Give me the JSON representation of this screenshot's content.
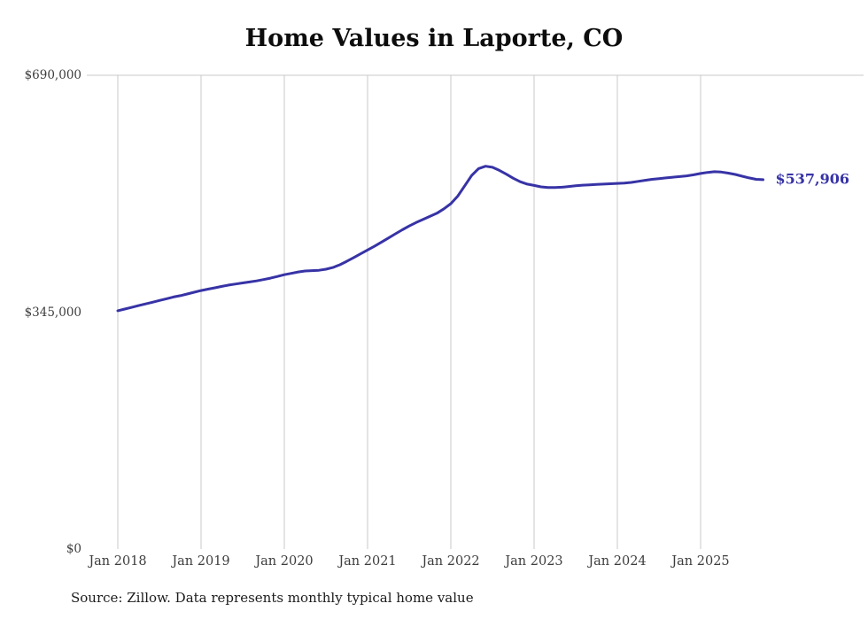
{
  "title": "Home Values in Laporte, CO",
  "source": "Source: Zillow. Data represents monthly typical home value",
  "end_label": "$537,906",
  "colors": {
    "line": "#3733a6",
    "grid": "#c9c9c9",
    "tick_text": "#3d3d3d"
  },
  "chart_data": {
    "type": "line",
    "title": "Home Values in Laporte, CO",
    "series_name": "Typical home value",
    "ylim": [
      0,
      690000
    ],
    "grid": "vertical-yearly",
    "legend": "none",
    "end_value": 537906,
    "y_ticks": [
      {
        "value": 690000,
        "label": "$690,000"
      },
      {
        "value": 345000,
        "label": "$345,000"
      },
      {
        "value": 0,
        "label": "$0"
      }
    ],
    "x_ticks": [
      "Jan 2018",
      "Jan 2019",
      "Jan 2020",
      "Jan 2021",
      "Jan 2022",
      "Jan 2023",
      "Jan 2024",
      "Jan 2025"
    ],
    "x": [
      "2018-01",
      "2018-02",
      "2018-03",
      "2018-04",
      "2018-05",
      "2018-06",
      "2018-07",
      "2018-08",
      "2018-09",
      "2018-10",
      "2018-11",
      "2018-12",
      "2019-01",
      "2019-02",
      "2019-03",
      "2019-04",
      "2019-05",
      "2019-06",
      "2019-07",
      "2019-08",
      "2019-09",
      "2019-10",
      "2019-11",
      "2019-12",
      "2020-01",
      "2020-02",
      "2020-03",
      "2020-04",
      "2020-05",
      "2020-06",
      "2020-07",
      "2020-08",
      "2020-09",
      "2020-10",
      "2020-11",
      "2020-12",
      "2021-01",
      "2021-02",
      "2021-03",
      "2021-04",
      "2021-05",
      "2021-06",
      "2021-07",
      "2021-08",
      "2021-09",
      "2021-10",
      "2021-11",
      "2021-12",
      "2022-01",
      "2022-02",
      "2022-03",
      "2022-04",
      "2022-05",
      "2022-06",
      "2022-07",
      "2022-08",
      "2022-09",
      "2022-10",
      "2022-11",
      "2022-12",
      "2023-01",
      "2023-02",
      "2023-03",
      "2023-04",
      "2023-05",
      "2023-06",
      "2023-07",
      "2023-08",
      "2023-09",
      "2023-10",
      "2023-11",
      "2023-12",
      "2024-01",
      "2024-02",
      "2024-03",
      "2024-04",
      "2024-05",
      "2024-06",
      "2024-07",
      "2024-08",
      "2024-09",
      "2024-10",
      "2024-11",
      "2024-12",
      "2025-01",
      "2025-02",
      "2025-03",
      "2025-04",
      "2025-05",
      "2025-06",
      "2025-07",
      "2025-08",
      "2025-09",
      "2025-10"
    ],
    "values": [
      347000,
      349500,
      352000,
      354500,
      357000,
      359500,
      362000,
      364500,
      367000,
      369000,
      371500,
      374000,
      376500,
      378500,
      380500,
      382500,
      384500,
      386000,
      387500,
      389000,
      390500,
      392500,
      394500,
      397000,
      399500,
      401500,
      403500,
      405000,
      405500,
      406000,
      407500,
      410000,
      414000,
      419000,
      424500,
      430000,
      435500,
      441000,
      447000,
      453000,
      459000,
      465000,
      470500,
      475500,
      480000,
      484500,
      489000,
      495500,
      503000,
      514000,
      529000,
      544000,
      554000,
      557500,
      556000,
      551500,
      546000,
      540000,
      535000,
      531500,
      529500,
      527500,
      526500,
      526500,
      527000,
      528000,
      529000,
      530000,
      530500,
      531000,
      531500,
      532000,
      532500,
      533000,
      534000,
      535500,
      537000,
      538500,
      539500,
      540500,
      541500,
      542500,
      543500,
      545000,
      547000,
      548500,
      549500,
      549000,
      547500,
      545500,
      543000,
      540500,
      538500,
      537906
    ]
  }
}
